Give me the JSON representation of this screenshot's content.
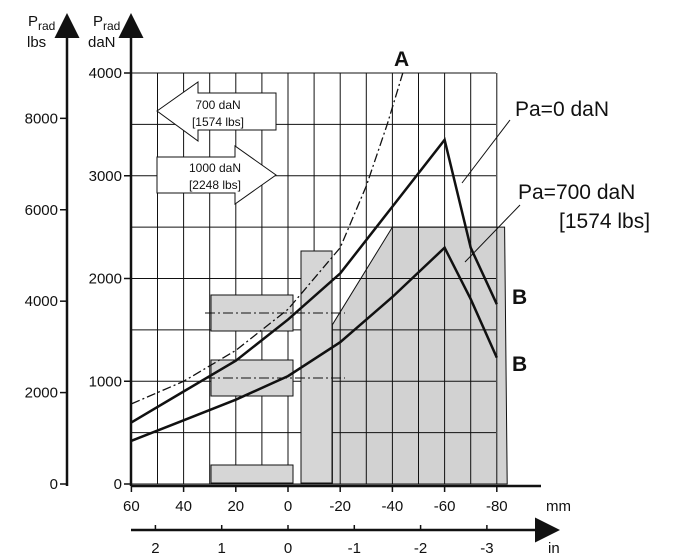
{
  "chart_data": {
    "type": "line",
    "axes": {
      "left_outer": {
        "label_main": "P",
        "label_sub": "rad",
        "unit": "lbs",
        "ticks": [
          "0",
          "2000",
          "4000",
          "6000",
          "8000"
        ]
      },
      "left_inner": {
        "label_main": "P",
        "label_sub": "rad",
        "unit": "daN",
        "ticks": [
          "0",
          "1000",
          "2000",
          "3000",
          "4000"
        ],
        "ylim": [
          0,
          4000
        ]
      },
      "bottom_mm": {
        "unit": "mm",
        "ticks": [
          "60",
          "40",
          "20",
          "0",
          "-20",
          "-40",
          "-60",
          "-80"
        ],
        "xlim": [
          60,
          -90
        ]
      },
      "bottom_in": {
        "unit": "in",
        "ticks": [
          "2",
          "1",
          "0",
          "-1",
          "-2",
          "-3"
        ]
      }
    },
    "grid": true,
    "series": [
      {
        "name": "Pa=0 daN",
        "style": "solid",
        "points": [
          [
            60,
            600
          ],
          [
            40,
            900
          ],
          [
            20,
            1200
          ],
          [
            0,
            1600
          ],
          [
            -20,
            2050
          ],
          [
            -40,
            2700
          ],
          [
            -60,
            3350
          ],
          [
            -70,
            2300
          ],
          [
            -80,
            1750
          ]
        ]
      },
      {
        "name": "Pa=700 daN [1574 lbs]",
        "style": "solid",
        "points": [
          [
            60,
            420
          ],
          [
            40,
            620
          ],
          [
            20,
            820
          ],
          [
            0,
            1050
          ],
          [
            -20,
            1380
          ],
          [
            -40,
            1820
          ],
          [
            -60,
            2300
          ],
          [
            -70,
            1800
          ],
          [
            -80,
            1230
          ]
        ]
      },
      {
        "name": "A",
        "style": "dash-dot",
        "points": [
          [
            60,
            780
          ],
          [
            40,
            1000
          ],
          [
            20,
            1300
          ],
          [
            0,
            1700
          ],
          [
            -20,
            2300
          ],
          [
            -30,
            2900
          ],
          [
            -38,
            3500
          ],
          [
            -44,
            4000
          ]
        ]
      }
    ],
    "shaded_region": {
      "name": "B",
      "points": [
        [
          0,
          0
        ],
        [
          -17,
          0
        ],
        [
          -17,
          1550
        ],
        [
          -40,
          2500
        ],
        [
          -83,
          2500
        ],
        [
          -84,
          0
        ]
      ]
    },
    "arrows": [
      {
        "text1": "700 daN",
        "text2": "[1574 lbs]",
        "direction": "left"
      },
      {
        "text1": "1000 daN",
        "text2": "[2248 lbs]",
        "direction": "right"
      }
    ],
    "annotations": [
      "A",
      "Pa=0 daN",
      "Pa=700 daN",
      "[1574 lbs]",
      "B",
      "B"
    ]
  }
}
